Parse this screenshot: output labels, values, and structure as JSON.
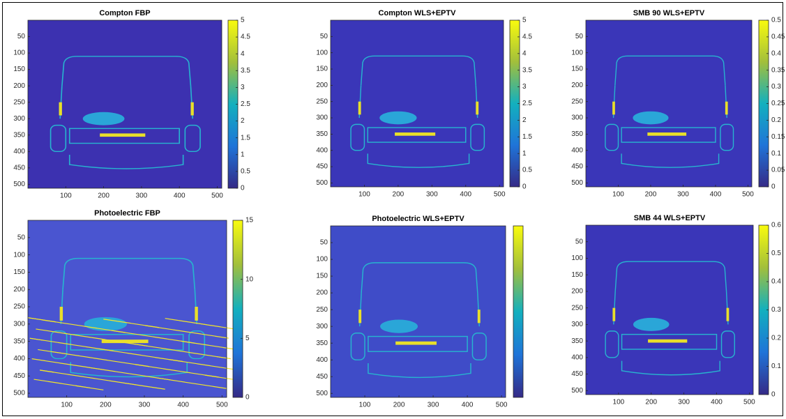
{
  "chart_data": [
    {
      "type": "image",
      "title": "Compton FBP",
      "xlim": [
        0,
        512
      ],
      "ylim": [
        0,
        512
      ],
      "xticks": [
        100,
        200,
        300,
        400,
        500
      ],
      "yticks": [
        50,
        100,
        150,
        200,
        250,
        300,
        350,
        400,
        450,
        500
      ],
      "clim": [
        0,
        5
      ],
      "cticks": [
        0,
        0.5,
        1,
        1.5,
        2,
        2.5,
        3,
        3.5,
        4,
        4.5,
        5
      ]
    },
    {
      "type": "image",
      "title": "Compton WLS+EPTV",
      "xlim": [
        0,
        512
      ],
      "ylim": [
        0,
        512
      ],
      "xticks": [
        100,
        200,
        300,
        400,
        500
      ],
      "yticks": [
        50,
        100,
        150,
        200,
        250,
        300,
        350,
        400,
        450,
        500
      ],
      "clim": [
        0,
        5
      ],
      "cticks": [
        0,
        0.5,
        1,
        1.5,
        2,
        2.5,
        3,
        3.5,
        4,
        4.5,
        5
      ]
    },
    {
      "type": "image",
      "title": "SMB 90 WLS+EPTV",
      "xlim": [
        0,
        512
      ],
      "ylim": [
        0,
        512
      ],
      "xticks": [
        100,
        200,
        300,
        400,
        500
      ],
      "yticks": [
        50,
        100,
        150,
        200,
        250,
        300,
        350,
        400,
        450,
        500
      ],
      "clim": [
        0,
        0.5
      ],
      "cticks": [
        0,
        0.05,
        0.1,
        0.15,
        0.2,
        0.25,
        0.3,
        0.35,
        0.4,
        0.45,
        0.5
      ]
    },
    {
      "type": "image",
      "title": "Photoelectric FBP",
      "xlim": [
        0,
        512
      ],
      "ylim": [
        0,
        512
      ],
      "xticks": [
        100,
        200,
        300,
        400,
        500
      ],
      "yticks": [
        50,
        100,
        150,
        200,
        250,
        300,
        350,
        400,
        450,
        500
      ],
      "clim": [
        0,
        15
      ],
      "cticks": [
        0,
        5,
        10,
        15
      ]
    },
    {
      "type": "image",
      "title": "Photoelectric WLS+EPTV",
      "xlim": [
        0,
        512
      ],
      "ylim": [
        0,
        512
      ],
      "xticks": [
        100,
        200,
        300,
        400,
        500
      ],
      "yticks": [
        50,
        100,
        150,
        200,
        250,
        300,
        350,
        400,
        450,
        500
      ]
    },
    {
      "type": "image",
      "title": "SMB 44 WLS+EPTV",
      "xlim": [
        0,
        512
      ],
      "ylim": [
        0,
        512
      ],
      "xticks": [
        100,
        200,
        300,
        400,
        500
      ],
      "yticks": [
        50,
        100,
        150,
        200,
        250,
        300,
        350,
        400,
        450,
        500
      ],
      "clim": [
        0,
        0.6
      ],
      "cticks": [
        0,
        0.1,
        0.2,
        0.3,
        0.4,
        0.5,
        0.6
      ]
    }
  ]
}
